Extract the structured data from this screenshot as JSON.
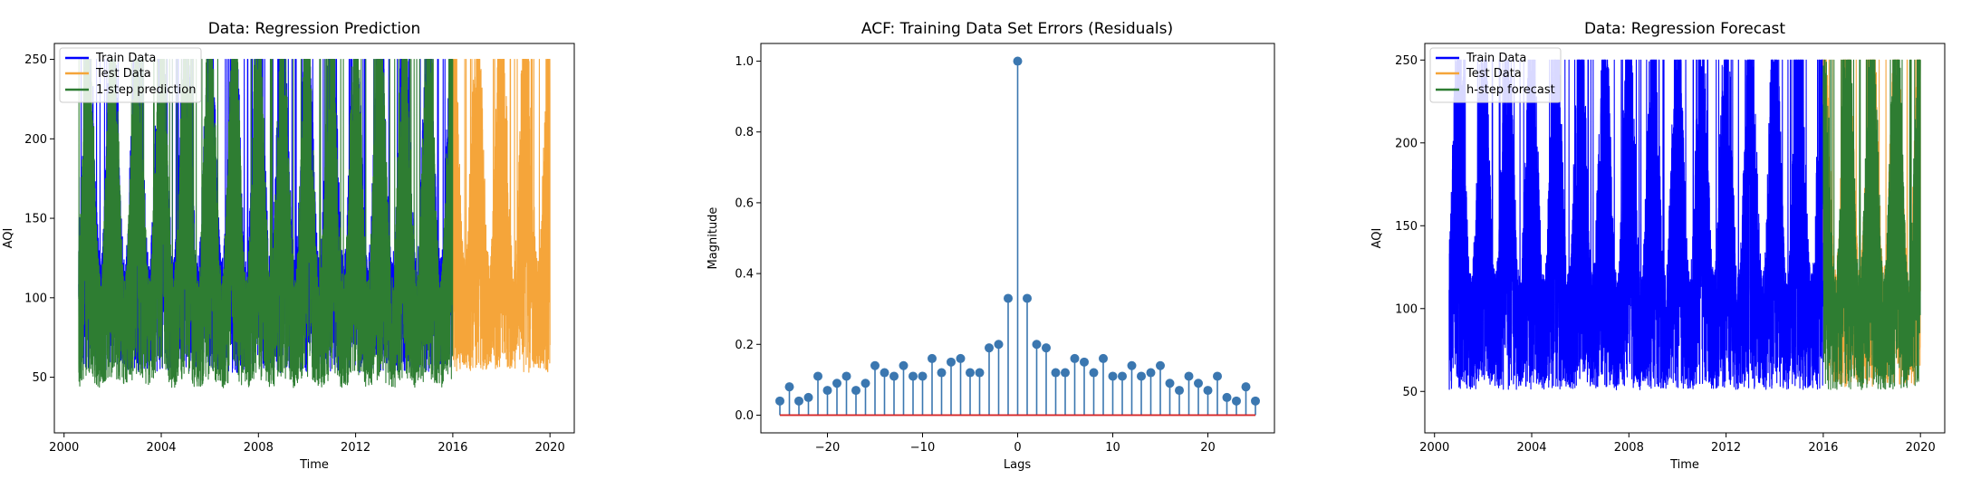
{
  "chart_data": [
    {
      "type": "line",
      "title": "Data: Regression Prediction",
      "xlabel": "Time",
      "ylabel": "AQI",
      "xlim": [
        1999.6,
        2021.0
      ],
      "ylim": [
        15,
        260
      ],
      "xticks": [
        2000,
        2004,
        2008,
        2012,
        2016,
        2020
      ],
      "yticks": [
        50,
        100,
        150,
        200,
        250
      ],
      "legend": "upper-left",
      "series": [
        {
          "name": "Train Data",
          "color": "#0000ff",
          "x_range": [
            2000.6,
            2016.0
          ],
          "low": 40,
          "high": 250
        },
        {
          "name": "Test Data",
          "color": "#f5a53a",
          "x_range": [
            2016.0,
            2020.0
          ],
          "low": 40,
          "high": 250
        },
        {
          "name": "1-step prediction",
          "color": "#2e7d32",
          "x_range": [
            2000.6,
            2016.0
          ],
          "low": 25,
          "high": 250
        }
      ]
    },
    {
      "type": "stem",
      "title": "ACF: Training Data Set Errors (Residuals)",
      "xlabel": "Lags",
      "ylabel": "Magnitude",
      "xlim": [
        -27,
        27
      ],
      "ylim": [
        -0.05,
        1.05
      ],
      "xticks": [
        -20,
        -10,
        0,
        10,
        20
      ],
      "yticks": [
        0.0,
        0.2,
        0.4,
        0.6,
        0.8,
        1.0
      ],
      "marker_color": "#3b77b0",
      "baseline_color": "#d62728",
      "lags": [
        -25,
        -24,
        -23,
        -22,
        -21,
        -20,
        -19,
        -18,
        -17,
        -16,
        -15,
        -14,
        -13,
        -12,
        -11,
        -10,
        -9,
        -8,
        -7,
        -6,
        -5,
        -4,
        -3,
        -2,
        -1,
        0,
        1,
        2,
        3,
        4,
        5,
        6,
        7,
        8,
        9,
        10,
        11,
        12,
        13,
        14,
        15,
        16,
        17,
        18,
        19,
        20,
        21,
        22,
        23,
        24,
        25
      ],
      "values": [
        0.04,
        0.08,
        0.04,
        0.05,
        0.11,
        0.07,
        0.09,
        0.11,
        0.07,
        0.09,
        0.14,
        0.12,
        0.11,
        0.14,
        0.11,
        0.11,
        0.16,
        0.12,
        0.15,
        0.16,
        0.12,
        0.12,
        0.19,
        0.2,
        0.33,
        1.0,
        0.33,
        0.2,
        0.19,
        0.12,
        0.12,
        0.16,
        0.15,
        0.12,
        0.16,
        0.11,
        0.11,
        0.14,
        0.11,
        0.12,
        0.14,
        0.09,
        0.07,
        0.11,
        0.09,
        0.07,
        0.11,
        0.05,
        0.04,
        0.08,
        0.04
      ]
    },
    {
      "type": "line",
      "title": "Data: Regression Forecast",
      "xlabel": "Time",
      "ylabel": "AQI",
      "xlim": [
        1999.6,
        2021.0
      ],
      "ylim": [
        25,
        260
      ],
      "xticks": [
        2000,
        2004,
        2008,
        2012,
        2016,
        2020
      ],
      "yticks": [
        50,
        100,
        150,
        200,
        250
      ],
      "legend": "upper-left",
      "series": [
        {
          "name": "Train Data",
          "color": "#0000ff",
          "x_range": [
            2000.6,
            2016.0
          ],
          "low": 35,
          "high": 250
        },
        {
          "name": "Test Data",
          "color": "#f5a53a",
          "x_range": [
            2016.0,
            2020.0
          ],
          "low": 40,
          "high": 250
        },
        {
          "name": "h-step forecast",
          "color": "#2e7d32",
          "x_range": [
            2016.0,
            2020.0
          ],
          "low": 35,
          "high": 250
        }
      ]
    }
  ]
}
